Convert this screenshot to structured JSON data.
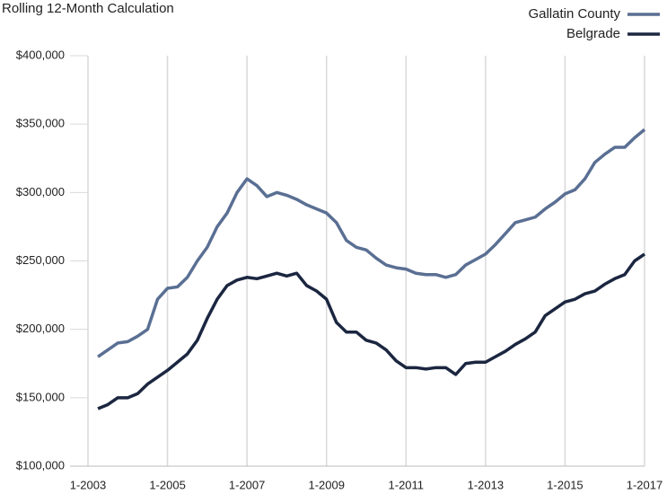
{
  "chart_data": {
    "type": "line",
    "title": "Rolling 12-Month Calculation",
    "x": [
      "4-2003",
      "7-2003",
      "10-2003",
      "1-2004",
      "4-2004",
      "7-2004",
      "10-2004",
      "1-2005",
      "4-2005",
      "7-2005",
      "10-2005",
      "1-2006",
      "4-2006",
      "7-2006",
      "10-2006",
      "1-2007",
      "4-2007",
      "7-2007",
      "10-2007",
      "1-2008",
      "4-2008",
      "7-2008",
      "10-2008",
      "1-2009",
      "4-2009",
      "7-2009",
      "10-2009",
      "1-2010",
      "4-2010",
      "7-2010",
      "10-2010",
      "1-2011",
      "4-2011",
      "7-2011",
      "10-2011",
      "1-2012",
      "4-2012",
      "7-2012",
      "10-2012",
      "1-2013",
      "4-2013",
      "7-2013",
      "10-2013",
      "1-2014",
      "4-2014",
      "7-2014",
      "10-2014",
      "1-2015",
      "4-2015",
      "7-2015",
      "10-2015",
      "1-2016",
      "4-2016",
      "7-2016",
      "10-2016",
      "1-2017"
    ],
    "series": [
      {
        "name": "Gallatin County",
        "color": "#5a6f93",
        "values": [
          180000,
          185000,
          190000,
          191000,
          195000,
          200000,
          222000,
          230000,
          231000,
          238000,
          250000,
          260000,
          275000,
          285000,
          300000,
          310000,
          305000,
          297000,
          300000,
          298000,
          295000,
          291000,
          288000,
          285000,
          278000,
          265000,
          260000,
          258000,
          252000,
          247000,
          245000,
          244000,
          241000,
          240000,
          240000,
          238000,
          240000,
          247000,
          251000,
          255000,
          262000,
          270000,
          278000,
          280000,
          282000,
          288000,
          293000,
          299000,
          302000,
          310000,
          322000,
          328000,
          333000,
          333000,
          340000,
          346000
        ]
      },
      {
        "name": "Belgrade",
        "color": "#1b2640",
        "values": [
          142000,
          145000,
          150000,
          150000,
          153000,
          160000,
          165000,
          170000,
          176000,
          182000,
          192000,
          208000,
          222000,
          232000,
          236000,
          238000,
          237000,
          239000,
          241000,
          239000,
          241000,
          232000,
          228000,
          222000,
          205000,
          198000,
          198000,
          192000,
          190000,
          185000,
          177000,
          172000,
          172000,
          171000,
          172000,
          172000,
          167000,
          175000,
          176000,
          176000,
          180000,
          184000,
          189000,
          193000,
          198000,
          210000,
          215000,
          220000,
          222000,
          226000,
          228000,
          233000,
          237000,
          240000,
          250000,
          255000
        ]
      }
    ],
    "xlim": [
      "1-2003",
      "1-2017"
    ],
    "xticks": [
      "1-2003",
      "1-2005",
      "1-2007",
      "1-2009",
      "1-2011",
      "1-2013",
      "1-2015",
      "1-2017"
    ],
    "ylim": [
      100000,
      400000
    ],
    "yticks": [
      {
        "value": 100000,
        "label": "$100,000"
      },
      {
        "value": 150000,
        "label": "$150,000"
      },
      {
        "value": 200000,
        "label": "$200,000"
      },
      {
        "value": 250000,
        "label": "$250,000"
      },
      {
        "value": 300000,
        "label": "$300,000"
      },
      {
        "value": 350000,
        "label": "$350,000"
      },
      {
        "value": 400000,
        "label": "$400,000"
      }
    ],
    "grid": true,
    "legend": "top-right"
  }
}
